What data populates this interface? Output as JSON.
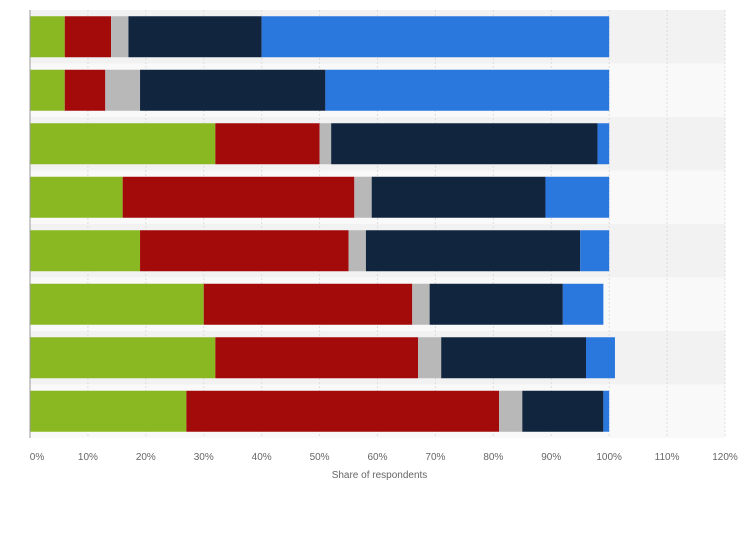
{
  "chart_data": {
    "type": "bar",
    "orientation": "horizontal",
    "stacked": true,
    "title": "",
    "xlabel": "Share of respondents",
    "ylabel": "",
    "xlim": [
      0,
      120
    ],
    "x_ticks": [
      "0%",
      "10%",
      "20%",
      "30%",
      "40%",
      "50%",
      "60%",
      "70%",
      "80%",
      "90%",
      "100%",
      "110%",
      "120%"
    ],
    "grid": "vertical",
    "categories": [
      "",
      "",
      "",
      "",
      "",
      "",
      "",
      ""
    ],
    "series": [
      {
        "color": "#8ab823",
        "values": [
          6,
          6,
          32,
          16,
          19,
          30,
          32,
          27
        ]
      },
      {
        "color": "#a30b0b",
        "values": [
          8,
          7,
          18,
          40,
          36,
          36,
          35,
          54
        ]
      },
      {
        "color": "#b8b8b8",
        "values": [
          3,
          6,
          2,
          3,
          3,
          3,
          4,
          4
        ]
      },
      {
        "color": "#11253f",
        "values": [
          23,
          32,
          46,
          30,
          37,
          23,
          25,
          14
        ]
      },
      {
        "color": "#2a77dd",
        "values": [
          60,
          49,
          2,
          11,
          5,
          7,
          5,
          1
        ]
      }
    ]
  }
}
